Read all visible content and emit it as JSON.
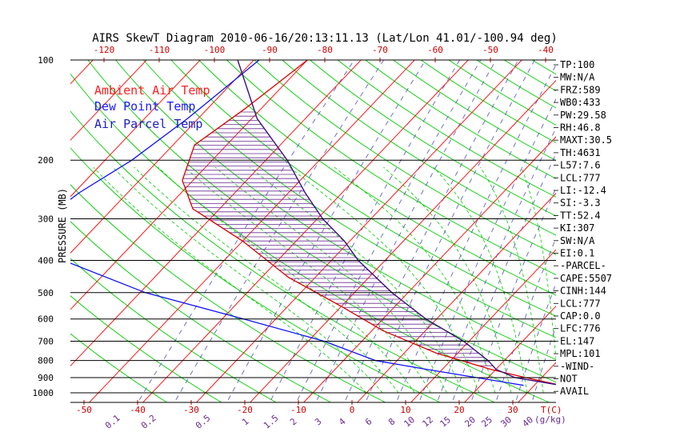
{
  "chart_data": {
    "type": "line",
    "title": "AIRS SkewT Diagram 2010-06-16/20:13:11.13 (Lat/Lon 41.01/-100.94 deg)",
    "ylabel": "PRESSURE (MB)",
    "x_top_ticks": [
      "-120",
      "-110",
      "-100",
      "-90",
      "-80",
      "-70",
      "-60",
      "-50",
      "-40"
    ],
    "x_bottom_ticks": [
      "-50",
      "-40",
      "-30",
      "-20",
      "-10",
      "0",
      "10",
      "20",
      "30"
    ],
    "x_bottom_unit": "T(C)",
    "mixing_ratio_labels": [
      "0.1",
      "0.2",
      "0.5",
      "1",
      "1.5",
      "2",
      "3",
      "4",
      "6",
      "8",
      "10",
      "12",
      "15",
      "20",
      "25",
      "30",
      "40"
    ],
    "mixing_ratio_unit": "(g/kg)",
    "pressure_ticks": [
      "100",
      "200",
      "300",
      "400",
      "500",
      "600",
      "700",
      "800",
      "900",
      "1000"
    ],
    "legend": [
      {
        "label": "Ambient Air Temp",
        "color": "#ff2020"
      },
      {
        "label": "Dew Point Temp",
        "color": "#1a1aff"
      },
      {
        "label": "Air Parcel Temp",
        "color": "#2020c0"
      }
    ],
    "series": [
      {
        "name": "Ambient Air Temp",
        "color": "#dd0000",
        "points": [
          [
            100,
            -70
          ],
          [
            140,
            -73
          ],
          [
            180,
            -76
          ],
          [
            230,
            -72
          ],
          [
            280,
            -65
          ],
          [
            350,
            -50
          ],
          [
            450,
            -35
          ],
          [
            550,
            -20
          ],
          [
            650,
            -8
          ],
          [
            760,
            6
          ],
          [
            850,
            19
          ],
          [
            900,
            27
          ],
          [
            950,
            35
          ]
        ]
      },
      {
        "name": "Dew Point Temp",
        "color": "#1010ff",
        "points": [
          [
            100,
            -79
          ],
          [
            150,
            -82
          ],
          [
            200,
            -85
          ],
          [
            250,
            -89
          ],
          [
            300,
            -91
          ],
          [
            350,
            -86
          ],
          [
            400,
            -80
          ],
          [
            500,
            -59
          ],
          [
            600,
            -36
          ],
          [
            700,
            -17
          ],
          [
            800,
            -4
          ],
          [
            850,
            7
          ],
          [
            950,
            28
          ]
        ]
      },
      {
        "name": "Air Parcel Temp",
        "color": "#3a1080",
        "points": [
          [
            100,
            -83
          ],
          [
            150,
            -69
          ],
          [
            200,
            -56
          ],
          [
            250,
            -47
          ],
          [
            300,
            -39
          ],
          [
            350,
            -31
          ],
          [
            400,
            -25
          ],
          [
            500,
            -13
          ],
          [
            600,
            -2
          ],
          [
            700,
            9
          ],
          [
            800,
            17
          ],
          [
            850,
            20
          ],
          [
            900,
            25
          ],
          [
            950,
            35
          ]
        ]
      }
    ],
    "indices": [
      "TP:100",
      "MW:N/A",
      "FRZ:589",
      "WB0:433",
      "PW:29.58",
      "RH:46.8",
      "MAXT:30.5",
      "TH:4631",
      "L57:7.6",
      "LCL:777",
      "LI:-12.4",
      "SI:-3.3",
      "TT:52.4",
      "KI:307",
      "SW:N/A",
      "EI:0.1",
      "-PARCEL-",
      "CAPE:5507",
      "CINH:144",
      "LCL:777",
      "CAP:0.0",
      "LFC:776",
      "EL:147",
      "MPL:101",
      "-WIND-",
      "NOT",
      "AVAIL"
    ],
    "colors": {
      "isotherm": "#ff0000",
      "dry_adiabat": "#00cc00",
      "moist_adiabat": "#00cc00",
      "mixing_ratio": "#5050c0",
      "hatch": "#6a2a90",
      "isobar": "#000000"
    }
  }
}
